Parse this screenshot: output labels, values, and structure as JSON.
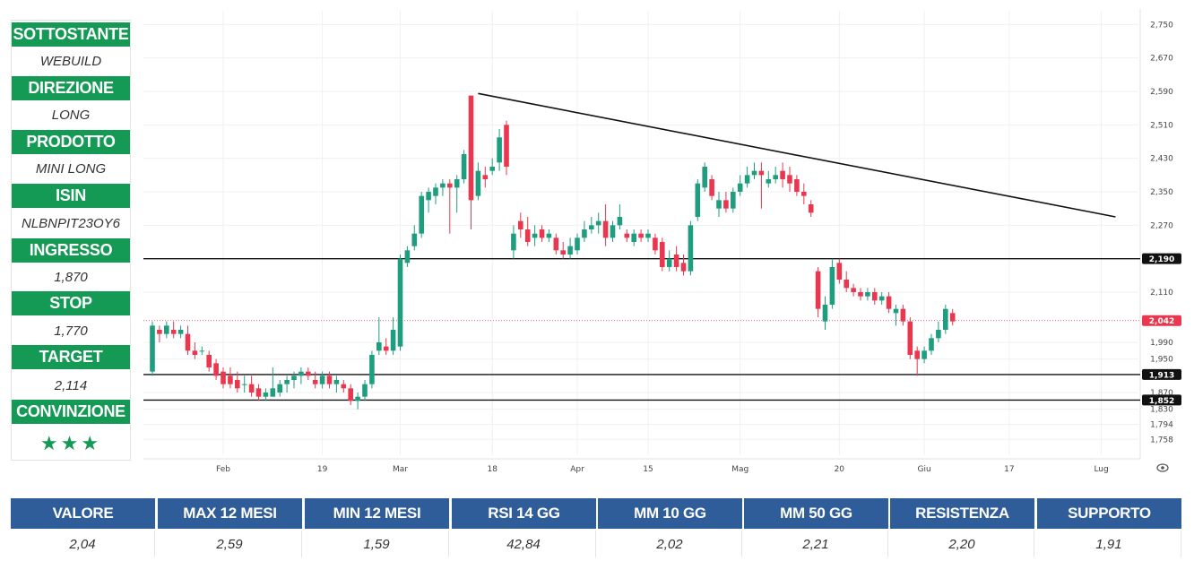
{
  "panel": {
    "items": [
      {
        "label": "SOTTOSTANTE",
        "value": "WEBUILD"
      },
      {
        "label": "DIREZIONE",
        "value": "LONG"
      },
      {
        "label": "PRODOTTO",
        "value": "MINI LONG"
      },
      {
        "label": "ISIN",
        "value": "NLBNPIT23OY6"
      },
      {
        "label": "INGRESSO",
        "value": "1,870"
      },
      {
        "label": "STOP",
        "value": "1,770"
      },
      {
        "label": "TARGET",
        "value": "2,114"
      },
      {
        "label": "CONVINZIONE",
        "value": "★★★"
      }
    ]
  },
  "colors": {
    "panel_header": "#159a55",
    "table_header": "#2f5d9a",
    "candle_up": "#1e9e7e",
    "candle_down": "#e8374e",
    "line": "#111111",
    "last_price": "#e8374e"
  },
  "chart_data": {
    "type": "candlestick",
    "title": "",
    "xlabel": "",
    "ylabel": "",
    "ylim": [
      1.72,
      2.77
    ],
    "y_ticks": [
      "2,750",
      "2,670",
      "2,590",
      "2,510",
      "2,430",
      "2,350",
      "2,270",
      "2,110",
      "1,990",
      "1,950",
      "1,870",
      "1,830",
      "1,794",
      "1,758"
    ],
    "y_tick_values": [
      2.75,
      2.67,
      2.59,
      2.51,
      2.43,
      2.35,
      2.27,
      2.11,
      1.99,
      1.95,
      1.87,
      1.83,
      1.794,
      1.758
    ],
    "x_ticks": [
      {
        "label": "Feb",
        "index": 10
      },
      {
        "label": "19",
        "index": 24
      },
      {
        "label": "Mar",
        "index": 35
      },
      {
        "label": "18",
        "index": 48
      },
      {
        "label": "Apr",
        "index": 60
      },
      {
        "label": "15",
        "index": 70
      },
      {
        "label": "Mag",
        "index": 83
      },
      {
        "label": "20",
        "index": 97
      },
      {
        "label": "Giu",
        "index": 109
      },
      {
        "label": "17",
        "index": 121
      },
      {
        "label": "Lug",
        "index": 134
      }
    ],
    "horizontal_lines": [
      {
        "value": 2.19,
        "label": "2,190"
      },
      {
        "value": 1.913,
        "label": "1,913"
      },
      {
        "value": 1.852,
        "label": "1,852"
      }
    ],
    "last_price": {
      "value": 2.042,
      "label": "2,042"
    },
    "trendline": {
      "from": {
        "index": 46,
        "value": 2.585
      },
      "to": {
        "index": 136,
        "value": 2.29
      }
    },
    "candles": [
      {
        "o": 1.92,
        "h": 2.04,
        "l": 1.91,
        "c": 2.03
      },
      {
        "o": 2.02,
        "h": 2.03,
        "l": 1.99,
        "c": 2.01
      },
      {
        "o": 2.01,
        "h": 2.04,
        "l": 2.0,
        "c": 2.03
      },
      {
        "o": 2.02,
        "h": 2.04,
        "l": 2.0,
        "c": 2.01
      },
      {
        "o": 2.01,
        "h": 2.03,
        "l": 2.0,
        "c": 2.02
      },
      {
        "o": 2.01,
        "h": 2.03,
        "l": 1.96,
        "c": 1.97
      },
      {
        "o": 1.97,
        "h": 1.99,
        "l": 1.95,
        "c": 1.96
      },
      {
        "o": 1.97,
        "h": 1.98,
        "l": 1.96,
        "c": 1.97
      },
      {
        "o": 1.96,
        "h": 1.97,
        "l": 1.92,
        "c": 1.93
      },
      {
        "o": 1.94,
        "h": 1.95,
        "l": 1.9,
        "c": 1.91
      },
      {
        "o": 1.92,
        "h": 1.93,
        "l": 1.88,
        "c": 1.89
      },
      {
        "o": 1.91,
        "h": 1.93,
        "l": 1.88,
        "c": 1.89
      },
      {
        "o": 1.9,
        "h": 1.92,
        "l": 1.87,
        "c": 1.88
      },
      {
        "o": 1.89,
        "h": 1.91,
        "l": 1.87,
        "c": 1.89
      },
      {
        "o": 1.89,
        "h": 1.91,
        "l": 1.86,
        "c": 1.87
      },
      {
        "o": 1.88,
        "h": 1.89,
        "l": 1.85,
        "c": 1.86
      },
      {
        "o": 1.86,
        "h": 1.88,
        "l": 1.85,
        "c": 1.87
      },
      {
        "o": 1.86,
        "h": 1.93,
        "l": 1.86,
        "c": 1.88
      },
      {
        "o": 1.87,
        "h": 1.9,
        "l": 1.86,
        "c": 1.89
      },
      {
        "o": 1.89,
        "h": 1.91,
        "l": 1.87,
        "c": 1.9
      },
      {
        "o": 1.9,
        "h": 1.92,
        "l": 1.88,
        "c": 1.91
      },
      {
        "o": 1.91,
        "h": 1.93,
        "l": 1.89,
        "c": 1.92
      },
      {
        "o": 1.92,
        "h": 1.93,
        "l": 1.9,
        "c": 1.91
      },
      {
        "o": 1.9,
        "h": 1.92,
        "l": 1.88,
        "c": 1.89
      },
      {
        "o": 1.89,
        "h": 1.92,
        "l": 1.88,
        "c": 1.91
      },
      {
        "o": 1.91,
        "h": 1.92,
        "l": 1.88,
        "c": 1.89
      },
      {
        "o": 1.89,
        "h": 1.91,
        "l": 1.87,
        "c": 1.9
      },
      {
        "o": 1.89,
        "h": 1.9,
        "l": 1.87,
        "c": 1.88
      },
      {
        "o": 1.88,
        "h": 1.89,
        "l": 1.84,
        "c": 1.85
      },
      {
        "o": 1.85,
        "h": 1.87,
        "l": 1.83,
        "c": 1.86
      },
      {
        "o": 1.86,
        "h": 1.9,
        "l": 1.85,
        "c": 1.89
      },
      {
        "o": 1.89,
        "h": 1.97,
        "l": 1.88,
        "c": 1.96
      },
      {
        "o": 1.97,
        "h": 2.05,
        "l": 1.96,
        "c": 1.99
      },
      {
        "o": 1.98,
        "h": 2.0,
        "l": 1.96,
        "c": 1.97
      },
      {
        "o": 1.97,
        "h": 2.05,
        "l": 1.96,
        "c": 2.02
      },
      {
        "o": 1.98,
        "h": 2.2,
        "l": 1.97,
        "c": 2.19
      },
      {
        "o": 2.18,
        "h": 2.22,
        "l": 2.17,
        "c": 2.21
      },
      {
        "o": 2.22,
        "h": 2.27,
        "l": 2.21,
        "c": 2.25
      },
      {
        "o": 2.25,
        "h": 2.35,
        "l": 2.24,
        "c": 2.34
      },
      {
        "o": 2.33,
        "h": 2.36,
        "l": 2.3,
        "c": 2.35
      },
      {
        "o": 2.34,
        "h": 2.37,
        "l": 2.32,
        "c": 2.36
      },
      {
        "o": 2.36,
        "h": 2.38,
        "l": 2.34,
        "c": 2.37
      },
      {
        "o": 2.37,
        "h": 2.38,
        "l": 2.25,
        "c": 2.36
      },
      {
        "o": 2.36,
        "h": 2.39,
        "l": 2.3,
        "c": 2.38
      },
      {
        "o": 2.38,
        "h": 2.45,
        "l": 2.37,
        "c": 2.44
      },
      {
        "o": 2.58,
        "h": 2.58,
        "l": 2.26,
        "c": 2.33
      },
      {
        "o": 2.34,
        "h": 2.42,
        "l": 2.33,
        "c": 2.4
      },
      {
        "o": 2.39,
        "h": 2.41,
        "l": 2.36,
        "c": 2.38
      },
      {
        "o": 2.4,
        "h": 2.43,
        "l": 2.39,
        "c": 2.41
      },
      {
        "o": 2.42,
        "h": 2.5,
        "l": 2.4,
        "c": 2.48
      },
      {
        "o": 2.51,
        "h": 2.52,
        "l": 2.39,
        "c": 2.41
      },
      {
        "o": 2.21,
        "h": 2.27,
        "l": 2.19,
        "c": 2.25
      },
      {
        "o": 2.28,
        "h": 2.3,
        "l": 2.24,
        "c": 2.26
      },
      {
        "o": 2.26,
        "h": 2.29,
        "l": 2.22,
        "c": 2.23
      },
      {
        "o": 2.24,
        "h": 2.27,
        "l": 2.22,
        "c": 2.25
      },
      {
        "o": 2.26,
        "h": 2.27,
        "l": 2.23,
        "c": 2.24
      },
      {
        "o": 2.24,
        "h": 2.26,
        "l": 2.23,
        "c": 2.25
      },
      {
        "o": 2.24,
        "h": 2.25,
        "l": 2.2,
        "c": 2.21
      },
      {
        "o": 2.21,
        "h": 2.23,
        "l": 2.19,
        "c": 2.2
      },
      {
        "o": 2.2,
        "h": 2.24,
        "l": 2.19,
        "c": 2.22
      },
      {
        "o": 2.21,
        "h": 2.25,
        "l": 2.2,
        "c": 2.24
      },
      {
        "o": 2.24,
        "h": 2.28,
        "l": 2.23,
        "c": 2.26
      },
      {
        "o": 2.26,
        "h": 2.29,
        "l": 2.25,
        "c": 2.27
      },
      {
        "o": 2.27,
        "h": 2.3,
        "l": 2.25,
        "c": 2.28
      },
      {
        "o": 2.28,
        "h": 2.32,
        "l": 2.22,
        "c": 2.24
      },
      {
        "o": 2.24,
        "h": 2.28,
        "l": 2.23,
        "c": 2.27
      },
      {
        "o": 2.27,
        "h": 2.32,
        "l": 2.26,
        "c": 2.29
      },
      {
        "o": 2.25,
        "h": 2.26,
        "l": 2.23,
        "c": 2.24
      },
      {
        "o": 2.23,
        "h": 2.26,
        "l": 2.22,
        "c": 2.25
      },
      {
        "o": 2.25,
        "h": 2.26,
        "l": 2.23,
        "c": 2.24
      },
      {
        "o": 2.24,
        "h": 2.26,
        "l": 2.23,
        "c": 2.25
      },
      {
        "o": 2.24,
        "h": 2.25,
        "l": 2.2,
        "c": 2.21
      },
      {
        "o": 2.23,
        "h": 2.24,
        "l": 2.16,
        "c": 2.17
      },
      {
        "o": 2.17,
        "h": 2.21,
        "l": 2.16,
        "c": 2.19
      },
      {
        "o": 2.2,
        "h": 2.22,
        "l": 2.16,
        "c": 2.17
      },
      {
        "o": 2.18,
        "h": 2.2,
        "l": 2.15,
        "c": 2.16
      },
      {
        "o": 2.16,
        "h": 2.28,
        "l": 2.15,
        "c": 2.27
      },
      {
        "o": 2.29,
        "h": 2.38,
        "l": 2.28,
        "c": 2.37
      },
      {
        "o": 2.36,
        "h": 2.42,
        "l": 2.35,
        "c": 2.41
      },
      {
        "o": 2.38,
        "h": 2.39,
        "l": 2.33,
        "c": 2.34
      },
      {
        "o": 2.31,
        "h": 2.35,
        "l": 2.29,
        "c": 2.33
      },
      {
        "o": 2.33,
        "h": 2.35,
        "l": 2.3,
        "c": 2.31
      },
      {
        "o": 2.31,
        "h": 2.36,
        "l": 2.3,
        "c": 2.35
      },
      {
        "o": 2.35,
        "h": 2.39,
        "l": 2.34,
        "c": 2.37
      },
      {
        "o": 2.37,
        "h": 2.41,
        "l": 2.36,
        "c": 2.39
      },
      {
        "o": 2.39,
        "h": 2.42,
        "l": 2.38,
        "c": 2.4
      },
      {
        "o": 2.4,
        "h": 2.42,
        "l": 2.31,
        "c": 2.39
      },
      {
        "o": 2.37,
        "h": 2.4,
        "l": 2.36,
        "c": 2.38
      },
      {
        "o": 2.38,
        "h": 2.41,
        "l": 2.37,
        "c": 2.39
      },
      {
        "o": 2.4,
        "h": 2.42,
        "l": 2.36,
        "c": 2.38
      },
      {
        "o": 2.39,
        "h": 2.41,
        "l": 2.35,
        "c": 2.37
      },
      {
        "o": 2.38,
        "h": 2.39,
        "l": 2.34,
        "c": 2.35
      },
      {
        "o": 2.35,
        "h": 2.37,
        "l": 2.32,
        "c": 2.34
      },
      {
        "o": 2.32,
        "h": 2.33,
        "l": 2.29,
        "c": 2.3
      },
      {
        "o": 2.16,
        "h": 2.17,
        "l": 2.05,
        "c": 2.07
      },
      {
        "o": 2.04,
        "h": 2.1,
        "l": 2.02,
        "c": 2.08
      },
      {
        "o": 2.08,
        "h": 2.19,
        "l": 2.07,
        "c": 2.17
      },
      {
        "o": 2.18,
        "h": 2.19,
        "l": 2.13,
        "c": 2.14
      },
      {
        "o": 2.14,
        "h": 2.16,
        "l": 2.11,
        "c": 2.12
      },
      {
        "o": 2.12,
        "h": 2.13,
        "l": 2.1,
        "c": 2.11
      },
      {
        "o": 2.11,
        "h": 2.12,
        "l": 2.09,
        "c": 2.1
      },
      {
        "o": 2.1,
        "h": 2.12,
        "l": 2.09,
        "c": 2.11
      },
      {
        "o": 2.11,
        "h": 2.12,
        "l": 2.08,
        "c": 2.09
      },
      {
        "o": 2.09,
        "h": 2.11,
        "l": 2.08,
        "c": 2.1
      },
      {
        "o": 2.1,
        "h": 2.11,
        "l": 2.06,
        "c": 2.07
      },
      {
        "o": 2.06,
        "h": 2.08,
        "l": 2.03,
        "c": 2.07
      },
      {
        "o": 2.07,
        "h": 2.08,
        "l": 2.03,
        "c": 2.04
      },
      {
        "o": 2.04,
        "h": 2.05,
        "l": 1.95,
        "c": 1.96
      },
      {
        "o": 1.97,
        "h": 1.98,
        "l": 1.91,
        "c": 1.95
      },
      {
        "o": 1.95,
        "h": 1.98,
        "l": 1.94,
        "c": 1.97
      },
      {
        "o": 1.97,
        "h": 2.01,
        "l": 1.96,
        "c": 2.0
      },
      {
        "o": 2.0,
        "h": 2.04,
        "l": 1.99,
        "c": 2.02
      },
      {
        "o": 2.02,
        "h": 2.08,
        "l": 2.01,
        "c": 2.07
      },
      {
        "o": 2.06,
        "h": 2.07,
        "l": 2.03,
        "c": 2.04
      }
    ]
  },
  "table": {
    "headers": [
      "VALORE",
      "MAX 12 MESI",
      "MIN 12 MESI",
      "RSI 14 GG",
      "MM 10 GG",
      "MM 50 GG",
      "RESISTENZA",
      "SUPPORTO"
    ],
    "values": [
      "2,04",
      "2,59",
      "1,59",
      "42,84",
      "2,02",
      "2,21",
      "2,20",
      "1,91"
    ]
  },
  "settings_icon": "eye-settings-icon"
}
